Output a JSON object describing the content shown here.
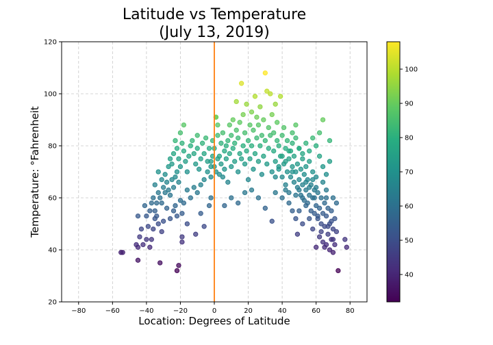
{
  "chart_data": {
    "type": "scatter",
    "title": "Latitude vs Temperature",
    "subtitle": "(July 13, 2019)",
    "xlabel": "Location: Degrees of Latitude",
    "ylabel": "Temperature: °Fahrenheit",
    "xlim": [
      -90,
      90
    ],
    "ylim": [
      20,
      120
    ],
    "xticks": [
      "−80",
      "−60",
      "−40",
      "−20",
      "0",
      "20",
      "40",
      "60",
      "80"
    ],
    "yticks": [
      "20",
      "40",
      "60",
      "80",
      "100",
      "120"
    ],
    "grid": true,
    "reference_line": {
      "x": 0,
      "color": "#ff7f0e"
    },
    "colorbar": {
      "colormap": "viridis",
      "range": [
        32,
        108
      ],
      "ticks": [
        "40",
        "50",
        "60",
        "70",
        "80",
        "90",
        "100"
      ]
    },
    "points": [
      [
        -55,
        39
      ],
      [
        -54,
        39
      ],
      [
        -46,
        42
      ],
      [
        -45,
        41
      ],
      [
        -45,
        36
      ],
      [
        -44,
        45
      ],
      [
        -43,
        48
      ],
      [
        -42,
        42
      ],
      [
        -40,
        44
      ],
      [
        -39,
        49
      ],
      [
        -38,
        41
      ],
      [
        -37,
        44
      ],
      [
        -36,
        48
      ],
      [
        -35,
        52
      ],
      [
        -35,
        55
      ],
      [
        -34,
        53
      ],
      [
        -33,
        50
      ],
      [
        -32,
        35
      ],
      [
        -31,
        47
      ],
      [
        -30,
        51
      ],
      [
        -45,
        53
      ],
      [
        -41,
        57
      ],
      [
        -40,
        53
      ],
      [
        -38,
        55
      ],
      [
        -37,
        58
      ],
      [
        -36,
        60
      ],
      [
        -34,
        58
      ],
      [
        -33,
        62
      ],
      [
        -32,
        60
      ],
      [
        -31,
        58
      ],
      [
        -30,
        64
      ],
      [
        -29,
        62
      ],
      [
        -28,
        66
      ],
      [
        -27,
        63
      ],
      [
        -26,
        61
      ],
      [
        -25,
        67
      ],
      [
        -24,
        64
      ],
      [
        -23,
        68
      ],
      [
        -22,
        70
      ],
      [
        -21,
        66
      ],
      [
        -35,
        65
      ],
      [
        -33,
        70
      ],
      [
        -31,
        67
      ],
      [
        -29,
        69
      ],
      [
        -27,
        72
      ],
      [
        -26,
        75
      ],
      [
        -25,
        73
      ],
      [
        -24,
        77
      ],
      [
        -23,
        82
      ],
      [
        -22,
        79
      ],
      [
        -21,
        75
      ],
      [
        -20,
        72
      ],
      [
        -20,
        85
      ],
      [
        -19,
        81
      ],
      [
        -18,
        78
      ],
      [
        -18,
        88
      ],
      [
        -17,
        74
      ],
      [
        -16,
        70
      ],
      [
        -15,
        76
      ],
      [
        -14,
        80
      ],
      [
        -13,
        82
      ],
      [
        -12,
        77
      ],
      [
        -11,
        73
      ],
      [
        -10,
        79
      ],
      [
        -10,
        84
      ],
      [
        -9,
        71
      ],
      [
        -8,
        75
      ],
      [
        -7,
        81
      ],
      [
        -6,
        77
      ],
      [
        -5,
        83
      ],
      [
        -4,
        74
      ],
      [
        -3,
        79
      ],
      [
        -2,
        72
      ],
      [
        -1,
        76
      ],
      [
        -6,
        67
      ],
      [
        -4,
        70
      ],
      [
        -2,
        68
      ],
      [
        -8,
        65
      ],
      [
        -10,
        62
      ],
      [
        -12,
        64
      ],
      [
        -14,
        60
      ],
      [
        -16,
        63
      ],
      [
        -18,
        58
      ],
      [
        -19,
        54
      ],
      [
        -20,
        59
      ],
      [
        -22,
        53
      ],
      [
        -23,
        57
      ],
      [
        -24,
        55
      ],
      [
        -26,
        52
      ],
      [
        -28,
        56
      ],
      [
        -19,
        45
      ],
      [
        -19,
        43
      ],
      [
        -21,
        34
      ],
      [
        -22,
        32
      ],
      [
        -16,
        50
      ],
      [
        -11,
        46
      ],
      [
        -8,
        54
      ],
      [
        -6,
        49
      ],
      [
        -3,
        57
      ],
      [
        -2,
        60
      ],
      [
        -2,
        74
      ],
      [
        -1,
        82
      ],
      [
        0,
        79
      ],
      [
        0,
        72
      ],
      [
        1,
        70
      ],
      [
        1,
        91
      ],
      [
        1,
        91
      ],
      [
        2,
        88
      ],
      [
        2,
        84
      ],
      [
        2,
        75
      ],
      [
        3,
        69
      ],
      [
        3,
        76
      ],
      [
        4,
        81
      ],
      [
        4,
        73
      ],
      [
        5,
        68
      ],
      [
        5,
        85
      ],
      [
        6,
        78
      ],
      [
        6,
        71
      ],
      [
        7,
        80
      ],
      [
        7,
        75
      ],
      [
        8,
        66
      ],
      [
        8,
        82
      ],
      [
        9,
        88
      ],
      [
        9,
        77
      ],
      [
        10,
        72
      ],
      [
        10,
        84
      ],
      [
        11,
        79
      ],
      [
        11,
        90
      ],
      [
        12,
        74
      ],
      [
        12,
        81
      ],
      [
        13,
        86
      ],
      [
        13,
        97
      ],
      [
        14,
        70
      ],
      [
        14,
        83
      ],
      [
        15,
        77
      ],
      [
        15,
        89
      ],
      [
        16,
        75
      ],
      [
        16,
        104
      ],
      [
        17,
        80
      ],
      [
        17,
        92
      ],
      [
        18,
        73
      ],
      [
        18,
        85
      ],
      [
        19,
        96
      ],
      [
        19,
        78
      ],
      [
        20,
        82
      ],
      [
        20,
        67
      ],
      [
        21,
        88
      ],
      [
        21,
        75
      ],
      [
        22,
        93
      ],
      [
        22,
        80
      ],
      [
        23,
        71
      ],
      [
        23,
        86
      ],
      [
        24,
        99
      ],
      [
        24,
        77
      ],
      [
        25,
        83
      ],
      [
        25,
        91
      ],
      [
        26,
        74
      ],
      [
        26,
        88
      ],
      [
        27,
        80
      ],
      [
        27,
        95
      ],
      [
        28,
        69
      ],
      [
        28,
        84
      ],
      [
        29,
        90
      ],
      [
        29,
        76
      ],
      [
        30,
        108
      ],
      [
        30,
        82
      ],
      [
        31,
        101
      ],
      [
        31,
        73
      ],
      [
        32,
        87
      ],
      [
        32,
        79
      ],
      [
        33,
        100
      ],
      [
        33,
        84
      ],
      [
        34,
        70
      ],
      [
        34,
        92
      ],
      [
        35,
        78
      ],
      [
        35,
        85
      ],
      [
        36,
        96
      ],
      [
        36,
        74
      ],
      [
        37,
        82
      ],
      [
        37,
        89
      ],
      [
        38,
        71
      ],
      [
        38,
        80
      ],
      [
        39,
        99
      ],
      [
        39,
        76
      ],
      [
        40,
        84
      ],
      [
        40,
        68
      ],
      [
        41,
        73
      ],
      [
        41,
        87
      ],
      [
        42,
        79
      ],
      [
        42,
        65
      ],
      [
        43,
        70
      ],
      [
        43,
        82
      ],
      [
        44,
        75
      ],
      [
        44,
        62
      ],
      [
        45,
        78
      ],
      [
        45,
        68
      ],
      [
        46,
        72
      ],
      [
        46,
        85
      ],
      [
        47,
        66
      ],
      [
        47,
        76
      ],
      [
        48,
        70
      ],
      [
        48,
        88
      ],
      [
        49,
        64
      ],
      [
        49,
        73
      ],
      [
        50,
        67
      ],
      [
        50,
        79
      ],
      [
        51,
        61
      ],
      [
        51,
        71
      ],
      [
        52,
        65
      ],
      [
        52,
        75
      ],
      [
        53,
        59
      ],
      [
        53,
        69
      ],
      [
        54,
        63
      ],
      [
        54,
        72
      ],
      [
        55,
        58
      ],
      [
        55,
        67
      ],
      [
        56,
        61
      ],
      [
        56,
        74
      ],
      [
        57,
        55
      ],
      [
        57,
        65
      ],
      [
        58,
        60
      ],
      [
        58,
        70
      ],
      [
        59,
        54
      ],
      [
        59,
        63
      ],
      [
        60,
        57
      ],
      [
        60,
        68
      ],
      [
        61,
        52
      ],
      [
        61,
        62
      ],
      [
        62,
        56
      ],
      [
        62,
        85
      ],
      [
        63,
        50
      ],
      [
        63,
        60
      ],
      [
        64,
        54
      ],
      [
        64,
        90
      ],
      [
        65,
        49
      ],
      [
        65,
        58
      ],
      [
        66,
        53
      ],
      [
        66,
        63
      ],
      [
        67,
        46
      ],
      [
        67,
        56
      ],
      [
        68,
        50
      ],
      [
        68,
        82
      ],
      [
        69,
        44
      ],
      [
        69,
        55
      ],
      [
        70,
        48
      ],
      [
        70,
        60
      ],
      [
        71,
        42
      ],
      [
        71,
        52
      ],
      [
        72,
        47
      ],
      [
        72,
        58
      ],
      [
        73,
        32
      ],
      [
        77,
        44
      ],
      [
        78,
        41
      ],
      [
        48,
        52
      ],
      [
        49,
        46
      ],
      [
        50,
        55
      ],
      [
        52,
        50
      ],
      [
        54,
        57
      ],
      [
        56,
        52
      ],
      [
        58,
        48
      ],
      [
        60,
        41
      ],
      [
        62,
        45
      ],
      [
        64,
        43
      ],
      [
        65,
        41
      ],
      [
        66,
        42
      ],
      [
        68,
        40
      ],
      [
        70,
        39
      ],
      [
        70,
        44
      ],
      [
        67,
        49
      ],
      [
        69,
        51
      ],
      [
        63,
        47
      ],
      [
        61,
        53
      ],
      [
        59,
        60
      ],
      [
        6,
        57
      ],
      [
        10,
        60
      ],
      [
        14,
        58
      ],
      [
        18,
        62
      ],
      [
        22,
        63
      ],
      [
        26,
        60
      ],
      [
        30,
        56
      ],
      [
        34,
        51
      ],
      [
        36,
        62
      ],
      [
        40,
        60
      ],
      [
        42,
        63
      ],
      [
        44,
        58
      ],
      [
        46,
        55
      ],
      [
        46,
        70
      ],
      [
        48,
        61
      ],
      [
        50,
        63
      ],
      [
        52,
        60
      ],
      [
        54,
        66
      ],
      [
        56,
        64
      ],
      [
        58,
        67
      ],
      [
        36,
        68
      ],
      [
        38,
        72
      ],
      [
        40,
        76
      ],
      [
        42,
        74
      ],
      [
        44,
        78
      ],
      [
        46,
        81
      ],
      [
        48,
        83
      ],
      [
        50,
        79
      ],
      [
        52,
        77
      ],
      [
        54,
        81
      ],
      [
        56,
        78
      ],
      [
        58,
        83
      ],
      [
        60,
        80
      ],
      [
        62,
        76
      ],
      [
        64,
        72
      ],
      [
        66,
        69
      ],
      [
        68,
        74
      ],
      [
        60,
        64
      ],
      [
        64,
        66
      ],
      [
        66,
        60
      ]
    ]
  }
}
